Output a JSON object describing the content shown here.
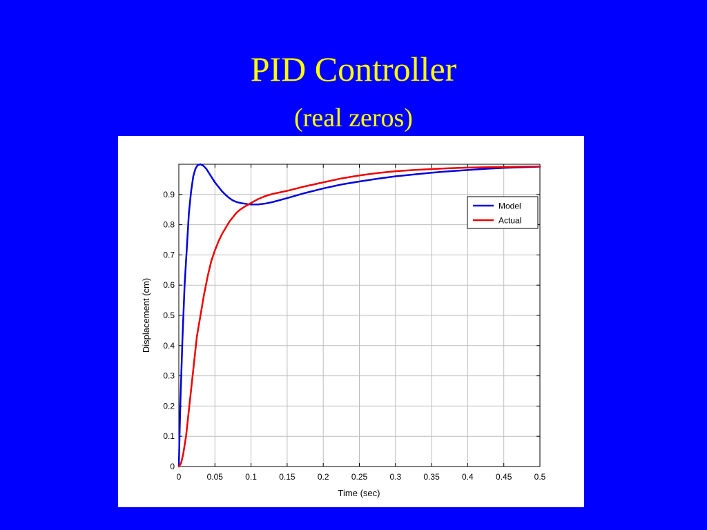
{
  "slide": {
    "title": "PID Controller",
    "subtitle": "(real zeros)"
  },
  "colors": {
    "background": "#0000ff",
    "title": "#ffff00",
    "model": "#0000dd",
    "actual": "#ee0000"
  },
  "chart_data": {
    "type": "line",
    "title": "",
    "xlabel": "Time (sec)",
    "ylabel": "Displacement (cm)",
    "xlim": [
      0,
      0.5
    ],
    "ylim": [
      0,
      1.0
    ],
    "xticks": [
      0,
      0.05,
      0.1,
      0.15,
      0.2,
      0.25,
      0.3,
      0.35,
      0.4,
      0.45,
      0.5
    ],
    "xtick_labels": [
      "0",
      "0.05",
      "0.1",
      "0.15",
      "0.2",
      "0.25",
      "0.3",
      "0.35",
      "0.4",
      "0.45",
      "0.5"
    ],
    "yticks": [
      0,
      0.1,
      0.2,
      0.3,
      0.4,
      0.5,
      0.6,
      0.7,
      0.8,
      0.9
    ],
    "ytick_labels": [
      "0",
      "0.1",
      "0.2",
      "0.3",
      "0.4",
      "0.5",
      "0.6",
      "0.7",
      "0.8",
      "0.9"
    ],
    "grid": true,
    "legend_position": "top-right",
    "series": [
      {
        "name": "Model",
        "color": "#0000dd",
        "x": [
          0,
          0.002,
          0.005,
          0.008,
          0.011,
          0.014,
          0.017,
          0.02,
          0.023,
          0.026,
          0.03,
          0.034,
          0.038,
          0.042,
          0.046,
          0.05,
          0.055,
          0.06,
          0.065,
          0.07,
          0.075,
          0.08,
          0.085,
          0.09,
          0.095,
          0.1,
          0.11,
          0.12,
          0.13,
          0.15,
          0.175,
          0.2,
          0.225,
          0.25,
          0.275,
          0.3,
          0.325,
          0.35,
          0.375,
          0.4,
          0.425,
          0.45,
          0.475,
          0.5
        ],
        "y": [
          0,
          0.2,
          0.42,
          0.6,
          0.72,
          0.84,
          0.91,
          0.96,
          0.985,
          0.997,
          1.0,
          0.995,
          0.985,
          0.97,
          0.955,
          0.94,
          0.925,
          0.91,
          0.898,
          0.888,
          0.88,
          0.875,
          0.872,
          0.87,
          0.868,
          0.867,
          0.867,
          0.87,
          0.875,
          0.888,
          0.905,
          0.92,
          0.933,
          0.943,
          0.952,
          0.96,
          0.966,
          0.972,
          0.977,
          0.981,
          0.985,
          0.988,
          0.99,
          0.992
        ]
      },
      {
        "name": "Actual",
        "color": "#ee0000",
        "x": [
          0,
          0.003,
          0.006,
          0.01,
          0.015,
          0.02,
          0.025,
          0.03,
          0.035,
          0.04,
          0.045,
          0.05,
          0.055,
          0.06,
          0.065,
          0.07,
          0.075,
          0.08,
          0.085,
          0.09,
          0.095,
          0.1,
          0.11,
          0.12,
          0.13,
          0.14,
          0.15,
          0.175,
          0.2,
          0.225,
          0.25,
          0.275,
          0.3,
          0.325,
          0.35,
          0.375,
          0.4,
          0.425,
          0.45,
          0.475,
          0.5
        ],
        "y": [
          0,
          0.01,
          0.04,
          0.1,
          0.21,
          0.32,
          0.43,
          0.5,
          0.57,
          0.63,
          0.68,
          0.715,
          0.745,
          0.77,
          0.79,
          0.81,
          0.825,
          0.84,
          0.85,
          0.858,
          0.865,
          0.872,
          0.885,
          0.895,
          0.902,
          0.907,
          0.912,
          0.927,
          0.94,
          0.953,
          0.963,
          0.971,
          0.977,
          0.981,
          0.984,
          0.987,
          0.989,
          0.99,
          0.991,
          0.992,
          0.993
        ]
      }
    ]
  }
}
